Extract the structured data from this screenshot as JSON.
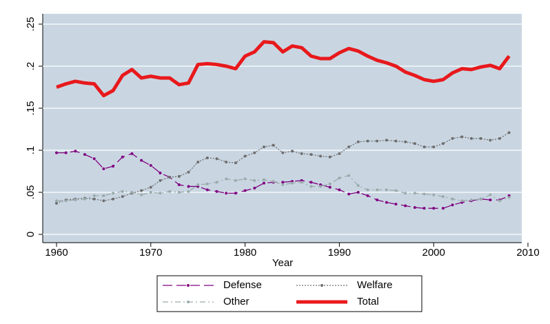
{
  "chart_data": {
    "type": "line",
    "x": [
      1960,
      1961,
      1962,
      1963,
      1964,
      1965,
      1966,
      1967,
      1968,
      1969,
      1970,
      1971,
      1972,
      1973,
      1974,
      1975,
      1976,
      1977,
      1978,
      1979,
      1980,
      1981,
      1982,
      1983,
      1984,
      1985,
      1986,
      1987,
      1988,
      1989,
      1990,
      1991,
      1992,
      1993,
      1994,
      1995,
      1996,
      1997,
      1998,
      1999,
      2000,
      2001,
      2002,
      2003,
      2004,
      2005,
      2006,
      2007,
      2008
    ],
    "series": [
      {
        "name": "Defense",
        "color": "#800080",
        "values": [
          0.097,
          0.097,
          0.099,
          0.095,
          0.09,
          0.078,
          0.081,
          0.092,
          0.096,
          0.088,
          0.082,
          0.073,
          0.068,
          0.059,
          0.057,
          0.057,
          0.053,
          0.051,
          0.049,
          0.049,
          0.052,
          0.055,
          0.061,
          0.062,
          0.062,
          0.063,
          0.064,
          0.062,
          0.059,
          0.056,
          0.053,
          0.048,
          0.05,
          0.046,
          0.041,
          0.038,
          0.036,
          0.034,
          0.032,
          0.031,
          0.031,
          0.031,
          0.035,
          0.038,
          0.04,
          0.042,
          0.041,
          0.041,
          0.046
        ]
      },
      {
        "name": "Welfare",
        "color": "#6e6e6e",
        "values": [
          0.037,
          0.041,
          0.042,
          0.043,
          0.042,
          0.04,
          0.042,
          0.045,
          0.049,
          0.052,
          0.056,
          0.064,
          0.068,
          0.069,
          0.074,
          0.086,
          0.091,
          0.09,
          0.086,
          0.085,
          0.093,
          0.097,
          0.104,
          0.106,
          0.097,
          0.099,
          0.096,
          0.095,
          0.093,
          0.092,
          0.096,
          0.104,
          0.11,
          0.111,
          0.111,
          0.112,
          0.111,
          0.11,
          0.108,
          0.104,
          0.104,
          0.108,
          0.114,
          0.116,
          0.114,
          0.114,
          0.112,
          0.114,
          0.121
        ]
      },
      {
        "name": "Other",
        "color": "#9aabab",
        "values": [
          0.04,
          0.04,
          0.041,
          0.042,
          0.046,
          0.046,
          0.049,
          0.051,
          0.05,
          0.047,
          0.05,
          0.049,
          0.051,
          0.05,
          0.051,
          0.059,
          0.06,
          0.062,
          0.066,
          0.064,
          0.066,
          0.064,
          0.065,
          0.063,
          0.059,
          0.061,
          0.062,
          0.057,
          0.057,
          0.06,
          0.067,
          0.07,
          0.058,
          0.053,
          0.053,
          0.053,
          0.052,
          0.049,
          0.049,
          0.048,
          0.047,
          0.045,
          0.042,
          0.04,
          0.041,
          0.042,
          0.047,
          0.04,
          0.044
        ]
      },
      {
        "name": "Total",
        "color": "#e8191c",
        "values": [
          0.175,
          0.179,
          0.182,
          0.18,
          0.179,
          0.165,
          0.171,
          0.189,
          0.196,
          0.186,
          0.188,
          0.186,
          0.186,
          0.178,
          0.18,
          0.202,
          0.203,
          0.202,
          0.2,
          0.197,
          0.212,
          0.217,
          0.229,
          0.228,
          0.217,
          0.224,
          0.222,
          0.212,
          0.209,
          0.209,
          0.216,
          0.221,
          0.218,
          0.212,
          0.207,
          0.204,
          0.2,
          0.193,
          0.189,
          0.184,
          0.182,
          0.184,
          0.192,
          0.197,
          0.196,
          0.199,
          0.201,
          0.197,
          0.212
        ]
      }
    ],
    "x_label": "Year",
    "xlim": [
      1960,
      2010
    ],
    "xticks": [
      1960,
      1970,
      1980,
      1990,
      2000,
      2010
    ],
    "ylim": [
      0,
      0.25
    ],
    "yticks": [
      0,
      {
        "value": 0.05,
        "label": ".05"
      },
      {
        "value": 0.1,
        "label": ".1"
      },
      {
        "value": 0.15,
        "label": ".15"
      },
      {
        "value": 0.2,
        "label": ".2"
      },
      {
        "value": 0.25,
        "label": ".25"
      }
    ],
    "grid": true,
    "legend": "bottom"
  }
}
